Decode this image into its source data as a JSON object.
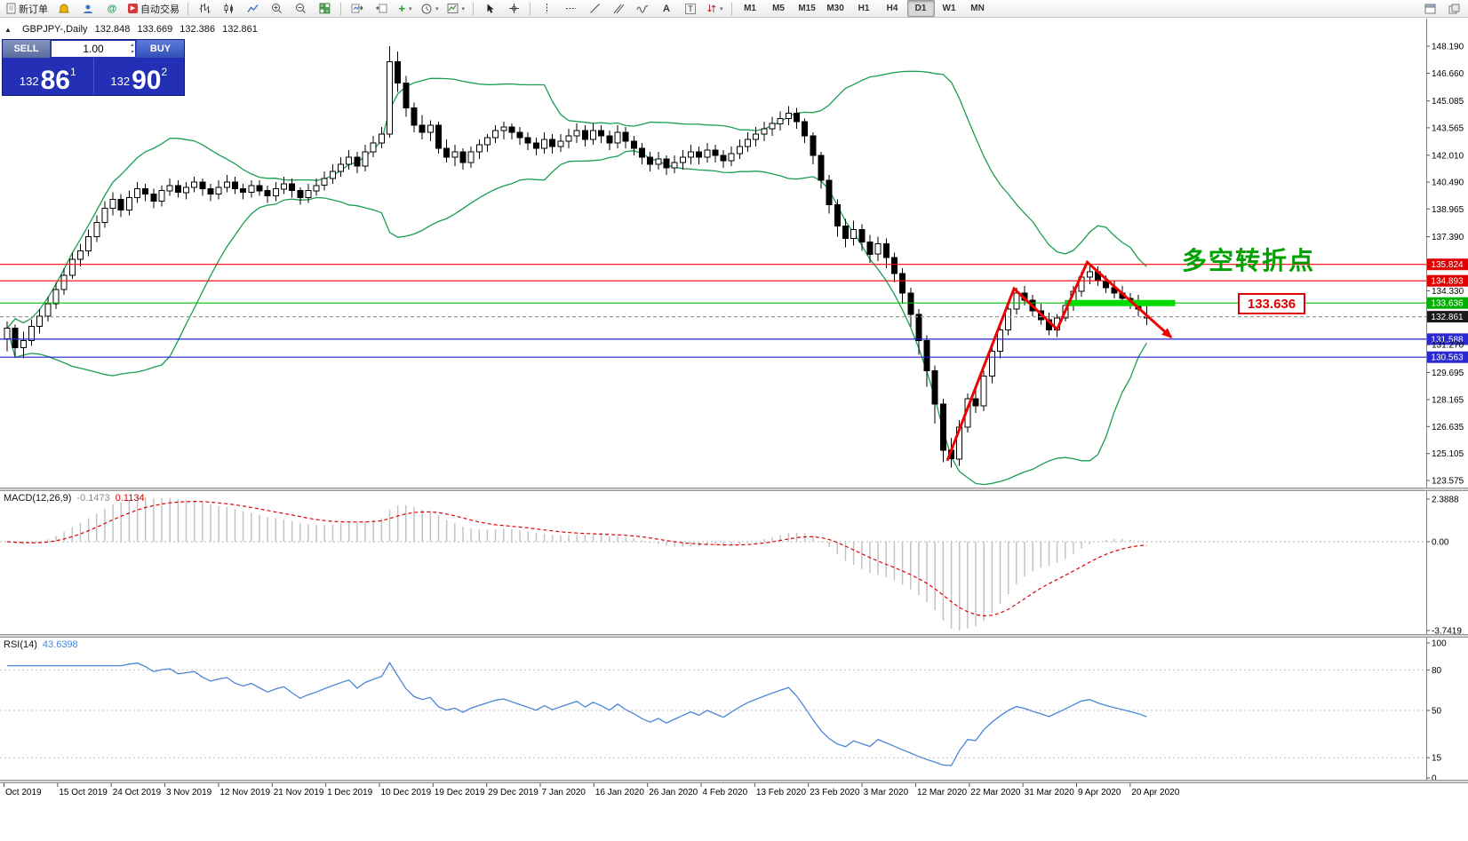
{
  "toolbar": {
    "active_timeframe": "D1",
    "items": [
      {
        "type": "button",
        "name": "new-order-button",
        "icon": "doc",
        "label": "新订单"
      },
      {
        "type": "button",
        "name": "alerts-button",
        "icon": "bell"
      },
      {
        "type": "button",
        "name": "community-button",
        "icon": "user"
      },
      {
        "type": "button",
        "name": "chat-button",
        "icon": "at"
      },
      {
        "type": "button",
        "name": "auto-trading-button",
        "icon": "autotrade",
        "label": "自动交易"
      },
      {
        "type": "sep"
      },
      {
        "type": "button",
        "name": "bar-chart-button",
        "icon": "bars"
      },
      {
        "type": "button",
        "name": "candlestick-chart-button",
        "icon": "candles"
      },
      {
        "type": "button",
        "name": "line-chart-button",
        "icon": "linechart"
      },
      {
        "type": "button",
        "name": "zoom-in-button",
        "icon": "zoomin"
      },
      {
        "type": "button",
        "name": "zoom-out-button",
        "icon": "zoomout"
      },
      {
        "type": "button",
        "name": "tile-windows-button",
        "icon": "tile"
      },
      {
        "type": "sep"
      },
      {
        "type": "button",
        "name": "auto-scroll-button",
        "icon": "autoscroll"
      },
      {
        "type": "button",
        "name": "chart-shift-button",
        "icon": "shift"
      },
      {
        "type": "button",
        "name": "new-chart-button",
        "icon": "newchart",
        "dropdown": true
      },
      {
        "type": "button",
        "name": "periods-button",
        "icon": "clock",
        "dropdown": true
      },
      {
        "type": "button",
        "name": "templates-button",
        "icon": "template",
        "dropdown": true
      },
      {
        "type": "sep"
      },
      {
        "type": "button",
        "name": "cursor-button",
        "icon": "cursor"
      },
      {
        "type": "button",
        "name": "crosshair-button",
        "icon": "crosshair"
      },
      {
        "type": "sep"
      },
      {
        "type": "button",
        "name": "vertical-line-button",
        "icon": "vline"
      },
      {
        "type": "button",
        "name": "horizontal-line-button",
        "icon": "hline"
      },
      {
        "type": "button",
        "name": "trendline-button",
        "icon": "trend"
      },
      {
        "type": "button",
        "name": "channel-button",
        "icon": "channel"
      },
      {
        "type": "button",
        "name": "elliott-wave-button",
        "icon": "elliott"
      },
      {
        "type": "button",
        "name": "text-button",
        "icon": "textA"
      },
      {
        "type": "button",
        "name": "text-label-button",
        "icon": "textT"
      },
      {
        "type": "button",
        "name": "arrows-button",
        "icon": "arrows",
        "dropdown": true
      },
      {
        "type": "sep"
      },
      {
        "type": "tf",
        "name": "timeframe-m1-button",
        "label": "M1"
      },
      {
        "type": "tf",
        "name": "timeframe-m5-button",
        "label": "M5"
      },
      {
        "type": "tf",
        "name": "timeframe-m15-button",
        "label": "M15"
      },
      {
        "type": "tf",
        "name": "timeframe-m30-button",
        "label": "M30"
      },
      {
        "type": "tf",
        "name": "timeframe-h1-button",
        "label": "H1"
      },
      {
        "type": "tf",
        "name": "timeframe-h4-button",
        "label": "H4"
      },
      {
        "type": "tf",
        "name": "timeframe-d1-button",
        "label": "D1"
      },
      {
        "type": "tf",
        "name": "timeframe-w1-button",
        "label": "W1"
      },
      {
        "type": "tf",
        "name": "timeframe-mn-button",
        "label": "MN"
      },
      {
        "type": "button",
        "name": "charts-list-button",
        "icon": "win1",
        "push": true
      },
      {
        "type": "button",
        "name": "window-arrange-button",
        "icon": "win2"
      }
    ]
  },
  "symbol_info": {
    "collapse_arrow": "▲",
    "symbol": "GBPJPY-,Daily",
    "open": "132.848",
    "high": "133.669",
    "low": "132.386",
    "close": "132.861"
  },
  "one_click": {
    "sell_label": "SELL",
    "buy_label": "BUY",
    "volume": "1.00",
    "sell": {
      "prefix": "132",
      "big": "86",
      "sup": "1"
    },
    "buy": {
      "prefix": "132",
      "big": "90",
      "sup": "2"
    }
  },
  "annotations": {
    "turning_point": "多空转折点",
    "price_box": "133.636"
  },
  "macd_panel": {
    "name": "MACD(12,26,9)",
    "value_main": "-0.1473",
    "value_signal": "0.1134",
    "ticks": [
      "2.3888",
      "0.00",
      "-3.7419"
    ]
  },
  "rsi_panel": {
    "name": "RSI(14)",
    "value": "43.6398",
    "axis_labels": [
      "100",
      "80",
      "50",
      "15",
      "0"
    ],
    "dashed_levels": [
      80,
      50,
      15
    ]
  },
  "time_axis": {
    "labels": [
      "Oct 2019",
      "15 Oct 2019",
      "24 Oct 2019",
      "3 Nov 2019",
      "12 Nov 2019",
      "21 Nov 2019",
      "1 Dec 2019",
      "10 Dec 2019",
      "19 Dec 2019",
      "29 Dec 2019",
      "7 Jan 2020",
      "16 Jan 2020",
      "26 Jan 2020",
      "4 Feb 2020",
      "13 Feb 2020",
      "23 Feb 2020",
      "3 Mar 2020",
      "12 Mar 2020",
      "22 Mar 2020",
      "31 Mar 2020",
      "9 Apr 2020",
      "20 Apr 2020"
    ]
  },
  "chart_data": {
    "type": "candlestick",
    "symbol": "GBPJPY",
    "timeframe": "Daily",
    "y_ticks": [
      "148.190",
      "146.660",
      "145.085",
      "143.565",
      "142.010",
      "140.490",
      "138.965",
      "137.390",
      "134.330",
      "131.270",
      "129.695",
      "128.165",
      "126.635",
      "125.105",
      "123.575"
    ],
    "levels": [
      {
        "price": 135.824,
        "label": "135.824",
        "color": "#ff0000",
        "line": "solid",
        "badge": "#e00000"
      },
      {
        "price": 134.893,
        "label": "134.893",
        "color": "#ff0000",
        "line": "solid",
        "badge": "#e00000"
      },
      {
        "price": 133.636,
        "label": "133.636",
        "color": "#00c000",
        "line": "solid",
        "badge": "#00b000"
      },
      {
        "price": 132.861,
        "label": "132.861",
        "color": "#999999",
        "line": "dash",
        "badge": "#1a1a1a"
      },
      {
        "price": 131.588,
        "label": "131.588",
        "color": "#2222cc",
        "line": "solid",
        "badge": "#2a2ad0"
      },
      {
        "price": 130.563,
        "label": "130.563",
        "color": "#2222cc",
        "line": "solid",
        "badge": "#2a2ad0"
      }
    ],
    "bollinger": {
      "period": 20,
      "deviation": 2,
      "color": "#1a9e50"
    },
    "colors": {
      "up": "#ffffff",
      "down": "#000000",
      "wick": "#000000",
      "zigzag": "#f00000",
      "segment": "#00dc00",
      "macd_hist": "#c2c2c2",
      "macd_signal": "#e00000",
      "rsi": "#4a86d8"
    },
    "drawing": {
      "support_segment": {
        "price": 133.636,
        "from_i": 130,
        "to_i": 143.5
      },
      "zigzag": [
        {
          "i": 115.5,
          "p": 124.7
        },
        {
          "i": 123.7,
          "p": 134.45
        },
        {
          "i": 129.0,
          "p": 132.15
        },
        {
          "i": 132.7,
          "p": 135.95
        },
        {
          "i": 143.0,
          "p": 131.7
        }
      ]
    },
    "candles": [
      [
        131.6,
        132.6,
        130.9,
        132.2
      ],
      [
        132.2,
        132.4,
        130.6,
        131.1
      ],
      [
        131.1,
        132.0,
        130.5,
        131.5
      ],
      [
        131.5,
        132.7,
        131.2,
        132.3
      ],
      [
        132.3,
        133.3,
        131.9,
        132.9
      ],
      [
        132.9,
        134.0,
        132.6,
        133.6
      ],
      [
        133.6,
        134.8,
        133.3,
        134.4
      ],
      [
        134.4,
        135.6,
        134.1,
        135.2
      ],
      [
        135.2,
        136.5,
        135.0,
        136.1
      ],
      [
        136.1,
        137.0,
        135.7,
        136.6
      ],
      [
        136.6,
        137.8,
        136.3,
        137.4
      ],
      [
        137.4,
        138.6,
        137.1,
        138.2
      ],
      [
        138.2,
        139.4,
        137.9,
        139.0
      ],
      [
        139.0,
        139.9,
        138.6,
        139.5
      ],
      [
        139.5,
        139.8,
        138.5,
        138.9
      ],
      [
        138.9,
        140.0,
        138.6,
        139.6
      ],
      [
        139.6,
        140.5,
        139.3,
        140.1
      ],
      [
        140.1,
        140.4,
        139.4,
        139.8
      ],
      [
        139.8,
        140.1,
        139.0,
        139.4
      ],
      [
        139.4,
        140.3,
        139.1,
        140.0
      ],
      [
        140.0,
        140.7,
        139.7,
        140.3
      ],
      [
        140.3,
        140.6,
        139.6,
        139.9
      ],
      [
        139.9,
        140.5,
        139.5,
        140.2
      ],
      [
        140.2,
        140.8,
        139.9,
        140.5
      ],
      [
        140.5,
        140.7,
        139.7,
        140.1
      ],
      [
        140.1,
        140.4,
        139.4,
        139.8
      ],
      [
        139.8,
        140.6,
        139.5,
        140.2
      ],
      [
        140.2,
        140.9,
        139.9,
        140.5
      ],
      [
        140.5,
        140.8,
        139.8,
        140.1
      ],
      [
        140.1,
        140.4,
        139.5,
        139.9
      ],
      [
        139.9,
        140.6,
        139.6,
        140.3
      ],
      [
        140.3,
        140.6,
        139.7,
        140.0
      ],
      [
        140.0,
        140.3,
        139.3,
        139.7
      ],
      [
        139.7,
        140.5,
        139.4,
        140.1
      ],
      [
        140.1,
        140.8,
        139.8,
        140.4
      ],
      [
        140.4,
        140.7,
        139.6,
        140.0
      ],
      [
        140.0,
        140.2,
        139.2,
        139.6
      ],
      [
        139.6,
        140.4,
        139.3,
        140.0
      ],
      [
        140.0,
        140.7,
        139.7,
        140.3
      ],
      [
        140.3,
        141.1,
        140.0,
        140.7
      ],
      [
        140.7,
        141.5,
        140.4,
        141.1
      ],
      [
        141.1,
        141.9,
        140.8,
        141.5
      ],
      [
        141.5,
        142.3,
        141.2,
        141.9
      ],
      [
        141.9,
        142.2,
        141.0,
        141.4
      ],
      [
        141.4,
        142.6,
        141.1,
        142.2
      ],
      [
        142.2,
        143.1,
        141.9,
        142.7
      ],
      [
        142.7,
        143.6,
        142.4,
        143.2
      ],
      [
        143.2,
        148.19,
        143.0,
        147.3
      ],
      [
        147.3,
        147.9,
        145.6,
        146.1
      ],
      [
        146.1,
        146.5,
        144.2,
        144.7
      ],
      [
        144.7,
        145.0,
        143.3,
        143.7
      ],
      [
        143.7,
        144.3,
        142.9,
        143.3
      ],
      [
        143.3,
        144.0,
        142.8,
        143.7
      ],
      [
        143.7,
        143.9,
        142.1,
        142.4
      ],
      [
        142.4,
        142.9,
        141.6,
        141.9
      ],
      [
        141.9,
        142.6,
        141.4,
        142.2
      ],
      [
        142.2,
        142.4,
        141.2,
        141.6
      ],
      [
        141.6,
        142.5,
        141.3,
        142.2
      ],
      [
        142.2,
        142.9,
        141.8,
        142.6
      ],
      [
        142.6,
        143.2,
        142.2,
        143.0
      ],
      [
        143.0,
        143.7,
        142.7,
        143.4
      ],
      [
        143.4,
        143.9,
        142.9,
        143.6
      ],
      [
        143.6,
        143.8,
        142.9,
        143.3
      ],
      [
        143.3,
        143.6,
        142.6,
        143.0
      ],
      [
        143.0,
        143.3,
        142.3,
        142.7
      ],
      [
        142.7,
        143.0,
        142.0,
        142.4
      ],
      [
        142.4,
        143.3,
        142.1,
        142.9
      ],
      [
        142.9,
        143.2,
        142.1,
        142.5
      ],
      [
        142.5,
        143.2,
        142.2,
        142.8
      ],
      [
        142.8,
        143.5,
        142.4,
        143.1
      ],
      [
        143.1,
        143.8,
        142.7,
        143.4
      ],
      [
        143.4,
        143.7,
        142.5,
        142.9
      ],
      [
        142.9,
        143.8,
        142.6,
        143.4
      ],
      [
        143.4,
        143.7,
        142.7,
        143.1
      ],
      [
        143.1,
        143.4,
        142.3,
        142.7
      ],
      [
        142.7,
        143.7,
        142.4,
        143.3
      ],
      [
        143.3,
        143.6,
        142.4,
        142.8
      ],
      [
        142.8,
        143.1,
        142.0,
        142.4
      ],
      [
        142.4,
        142.7,
        141.5,
        141.9
      ],
      [
        141.9,
        142.2,
        141.1,
        141.5
      ],
      [
        141.5,
        142.2,
        141.2,
        141.8
      ],
      [
        141.8,
        142.0,
        140.9,
        141.3
      ],
      [
        141.3,
        142.0,
        141.0,
        141.6
      ],
      [
        141.6,
        142.3,
        141.2,
        141.9
      ],
      [
        141.9,
        142.6,
        141.5,
        142.2
      ],
      [
        142.2,
        142.5,
        141.5,
        141.9
      ],
      [
        141.9,
        142.7,
        141.6,
        142.3
      ],
      [
        142.3,
        142.6,
        141.6,
        142.0
      ],
      [
        142.0,
        142.3,
        141.3,
        141.7
      ],
      [
        141.7,
        142.5,
        141.4,
        142.1
      ],
      [
        142.1,
        142.9,
        141.8,
        142.5
      ],
      [
        142.5,
        143.3,
        142.2,
        142.9
      ],
      [
        142.9,
        143.6,
        142.5,
        143.2
      ],
      [
        143.2,
        143.9,
        142.8,
        143.5
      ],
      [
        143.5,
        144.2,
        143.1,
        143.8
      ],
      [
        143.8,
        144.5,
        143.4,
        144.1
      ],
      [
        144.1,
        144.8,
        143.7,
        144.4
      ],
      [
        144.4,
        144.7,
        143.5,
        143.9
      ],
      [
        143.9,
        144.1,
        142.7,
        143.1
      ],
      [
        143.1,
        143.3,
        141.5,
        142.0
      ],
      [
        142.0,
        142.2,
        140.1,
        140.6
      ],
      [
        140.6,
        140.9,
        138.7,
        139.2
      ],
      [
        139.2,
        139.5,
        137.4,
        138.0
      ],
      [
        138.0,
        138.4,
        136.8,
        137.3
      ],
      [
        137.3,
        138.3,
        136.9,
        137.8
      ],
      [
        137.8,
        138.1,
        136.6,
        137.1
      ],
      [
        137.1,
        137.5,
        135.9,
        136.4
      ],
      [
        136.4,
        137.4,
        136.0,
        137.0
      ],
      [
        137.0,
        137.3,
        135.6,
        136.2
      ],
      [
        136.2,
        136.5,
        134.8,
        135.3
      ],
      [
        135.3,
        135.6,
        133.6,
        134.2
      ],
      [
        134.2,
        134.5,
        132.3,
        133.0
      ],
      [
        133.0,
        133.3,
        130.7,
        131.5
      ],
      [
        131.5,
        131.8,
        128.9,
        129.8
      ],
      [
        129.8,
        130.1,
        126.8,
        127.9
      ],
      [
        127.9,
        128.2,
        124.6,
        125.3
      ],
      [
        125.3,
        126.0,
        124.3,
        124.8
      ],
      [
        124.8,
        127.0,
        124.4,
        126.6
      ],
      [
        126.6,
        128.5,
        126.3,
        128.2
      ],
      [
        128.2,
        129.0,
        127.4,
        127.8
      ],
      [
        127.8,
        129.8,
        127.5,
        129.5
      ],
      [
        129.5,
        131.2,
        129.1,
        130.9
      ],
      [
        130.9,
        132.4,
        130.5,
        132.1
      ],
      [
        132.1,
        133.6,
        131.8,
        133.3
      ],
      [
        133.3,
        134.5,
        133.0,
        134.2
      ],
      [
        134.2,
        134.6,
        133.5,
        133.8
      ],
      [
        133.8,
        134.1,
        132.9,
        133.2
      ],
      [
        133.2,
        133.6,
        132.4,
        132.7
      ],
      [
        132.7,
        133.1,
        131.8,
        132.1
      ],
      [
        132.1,
        133.0,
        131.7,
        132.8
      ],
      [
        132.8,
        133.8,
        132.6,
        133.5
      ],
      [
        133.5,
        134.6,
        133.2,
        134.3
      ],
      [
        134.3,
        135.4,
        134.0,
        135.1
      ],
      [
        135.1,
        135.85,
        134.7,
        135.4
      ],
      [
        135.4,
        135.7,
        134.6,
        134.9
      ],
      [
        134.9,
        135.2,
        134.2,
        134.5
      ],
      [
        134.5,
        134.9,
        133.9,
        134.2
      ],
      [
        134.2,
        134.6,
        133.6,
        133.9
      ],
      [
        133.9,
        134.2,
        133.3,
        133.6
      ],
      [
        133.6,
        134.1,
        132.9,
        133.3
      ],
      [
        132.848,
        133.669,
        132.386,
        132.861
      ]
    ]
  }
}
